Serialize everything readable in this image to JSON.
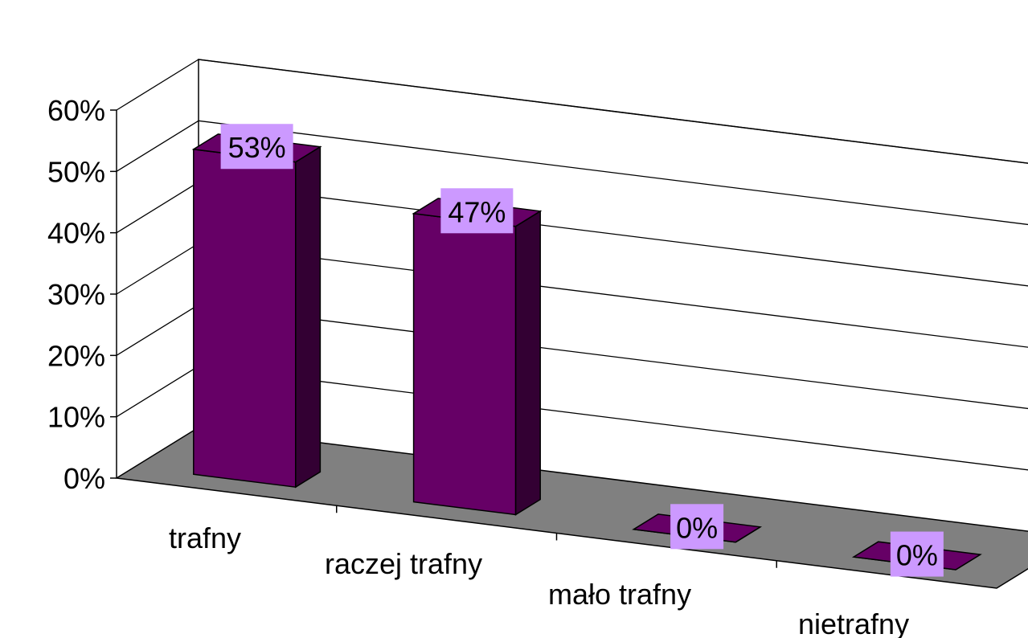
{
  "chart_data": {
    "type": "bar",
    "style": "3d-column",
    "categories": [
      "trafny",
      "raczej trafny",
      "mało trafny",
      "nietrafny"
    ],
    "values": [
      0.53,
      0.47,
      0.0,
      0.0
    ],
    "data_labels": [
      "53%",
      "47%",
      "0%",
      "0%"
    ],
    "y_ticks": [
      "0%",
      "10%",
      "20%",
      "30%",
      "40%",
      "50%",
      "60%"
    ],
    "ylim": [
      0,
      0.6
    ],
    "grid": true,
    "legend": "none",
    "colors": {
      "bar_front": "#660066",
      "bar_side": "#330033",
      "bar_top": "#660066",
      "floor": "#808080",
      "label_bg": "#CC99FF"
    }
  }
}
